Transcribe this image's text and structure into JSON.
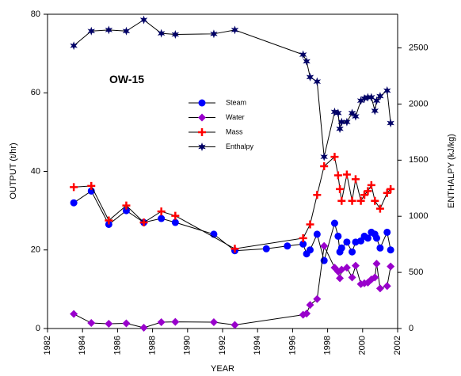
{
  "chart_data": {
    "type": "line",
    "title": "OW-15",
    "xlabel": "YEAR",
    "ylabel": "OUTPUT (t/hr)",
    "y2label": "ENTHALPY (kJ/kg)",
    "xlim": [
      1982,
      2002
    ],
    "xticks": [
      1982,
      1984,
      1986,
      1988,
      1990,
      1992,
      1994,
      1996,
      1998,
      2000,
      2002
    ],
    "ylim": [
      0,
      80
    ],
    "yticks": [
      0,
      20,
      40,
      60,
      80
    ],
    "y2lim": [
      0,
      2800
    ],
    "y2ticks": [
      0,
      500,
      1000,
      1500,
      2000,
      2500
    ],
    "line_color": "#000000",
    "series": [
      {
        "name": "Steam",
        "color": "#0000ff",
        "marker": "circle",
        "x": [
          1983.5,
          1984.5,
          1985.5,
          1986.5,
          1987.5,
          1988.5,
          1989.3,
          1991.5,
          1992.7,
          1994.5,
          1995.7,
          1996.6,
          1996.8,
          1997.0,
          1997.4,
          1997.8,
          1998.4,
          1998.6,
          1998.7,
          1998.8,
          1999.1,
          1999.4,
          1999.6,
          1999.9,
          2000.1,
          2000.3,
          2000.5,
          2000.7,
          2000.8,
          2001.0,
          2001.4,
          2001.6
        ],
        "values": [
          32,
          35,
          26.5,
          30,
          27,
          28,
          27,
          24,
          19.8,
          20.3,
          21,
          21.5,
          19,
          20,
          24,
          17.3,
          26.8,
          23.5,
          19.5,
          20.5,
          22,
          19.5,
          22,
          22.3,
          23.5,
          23,
          24.5,
          24,
          23,
          20.5,
          24.5,
          20
        ]
      },
      {
        "name": "Water",
        "color": "#9900cc",
        "marker": "diamond",
        "x": [
          1983.5,
          1984.5,
          1985.5,
          1986.5,
          1987.5,
          1988.5,
          1989.3,
          1991.5,
          1992.7,
          1996.6,
          1996.8,
          1997.0,
          1997.4,
          1997.8,
          1998.4,
          1998.6,
          1998.7,
          1998.8,
          1999.1,
          1999.4,
          1999.6,
          1999.9,
          2000.1,
          2000.3,
          2000.5,
          2000.7,
          2000.8,
          2001.0,
          2001.4,
          2001.6
        ],
        "values": [
          3.7,
          1.4,
          1.2,
          1.3,
          0.2,
          1.6,
          1.7,
          1.6,
          0.9,
          3.5,
          3.8,
          6,
          7.5,
          21,
          15.5,
          14.5,
          12.8,
          15,
          15.5,
          13,
          16,
          11.3,
          11.5,
          11.7,
          12.5,
          13,
          16.5,
          10.2,
          10.8,
          15.8
        ]
      },
      {
        "name": "Mass",
        "color": "#ff0000",
        "marker": "plus",
        "x": [
          1983.5,
          1984.5,
          1985.5,
          1986.5,
          1987.5,
          1988.5,
          1989.3,
          1992.7,
          1996.6,
          1997.0,
          1997.4,
          1997.8,
          1998.4,
          1998.6,
          1998.7,
          1998.8,
          1999.1,
          1999.4,
          1999.6,
          1999.9,
          2000.1,
          2000.3,
          2000.5,
          2000.7,
          2001.0,
          2001.4,
          2001.6
        ],
        "values": [
          36,
          36.3,
          27.5,
          31.3,
          27,
          29.8,
          28.7,
          20.3,
          23,
          26.5,
          34,
          41.3,
          43.7,
          39,
          35.5,
          32.5,
          39.2,
          32.5,
          38,
          32.5,
          34,
          35,
          36.5,
          32.5,
          30.5,
          34.5,
          35.5
        ]
      },
      {
        "name": "Enthalpy",
        "color": "#000066",
        "marker": "star",
        "axis": "y2",
        "x": [
          1983.5,
          1984.5,
          1985.5,
          1986.5,
          1987.5,
          1988.5,
          1989.3,
          1991.5,
          1992.7,
          1996.6,
          1996.8,
          1997.0,
          1997.4,
          1997.8,
          1998.4,
          1998.6,
          1998.7,
          1998.8,
          1999.1,
          1999.4,
          1999.6,
          1999.9,
          2000.1,
          2000.3,
          2000.5,
          2000.7,
          2000.8,
          2001.0,
          2001.4,
          2001.6
        ],
        "values": [
          2520,
          2650,
          2660,
          2650,
          2750,
          2630,
          2620,
          2625,
          2660,
          2440,
          2380,
          2240,
          2200,
          1530,
          1930,
          1920,
          1780,
          1840,
          1840,
          1920,
          1890,
          2030,
          2050,
          2060,
          2060,
          1940,
          2030,
          2070,
          2120,
          1830
        ]
      }
    ]
  }
}
